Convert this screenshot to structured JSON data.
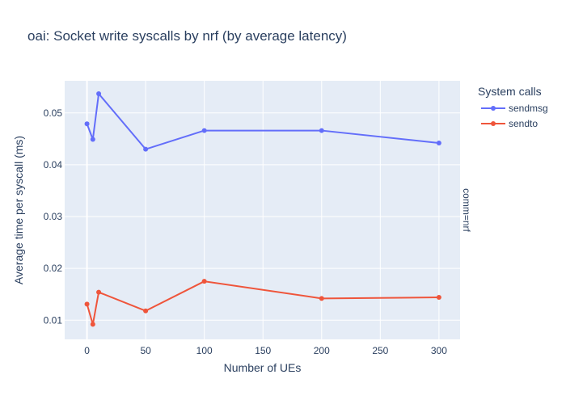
{
  "chart_data": {
    "type": "line",
    "title": "oai: Socket write syscalls by nrf (by average latency)",
    "xlabel": "Number of UEs",
    "ylabel": "Average time per syscall (ms)",
    "facet_label": "comm=nrf",
    "legend_title": "System calls",
    "legend_position": "top-right",
    "grid": true,
    "xlim": [
      -19,
      318
    ],
    "ylim": [
      0.0063,
      0.0562
    ],
    "xticks": [
      0,
      50,
      100,
      150,
      200,
      250,
      300
    ],
    "xtick_labels": [
      "0",
      "50",
      "100",
      "150",
      "200",
      "250",
      "300"
    ],
    "yticks": [
      0.01,
      0.02,
      0.03,
      0.04,
      0.05
    ],
    "ytick_labels": [
      "0.01",
      "0.02",
      "0.03",
      "0.04",
      "0.05"
    ],
    "colors": {
      "plot_bg": "#E5ECF6",
      "grid": "#FFFFFF",
      "text": "#2a3f5f"
    },
    "x": [
      0,
      5,
      10,
      50,
      100,
      200,
      300
    ],
    "series": [
      {
        "name": "sendmsg",
        "color": "#636EFA",
        "values": [
          0.0479,
          0.0449,
          0.0537,
          0.043,
          0.0466,
          0.0466,
          0.0442
        ]
      },
      {
        "name": "sendto",
        "color": "#EF553B",
        "values": [
          0.0131,
          0.0092,
          0.0154,
          0.0118,
          0.0175,
          0.0142,
          0.0144
        ]
      }
    ]
  }
}
